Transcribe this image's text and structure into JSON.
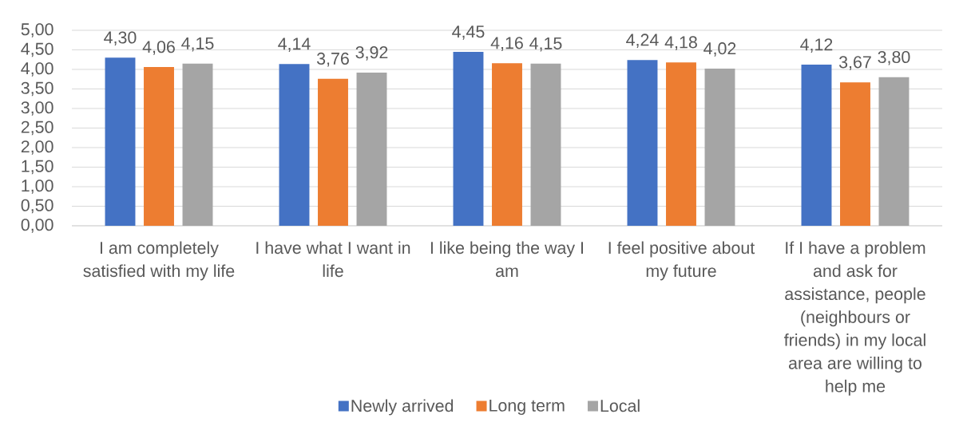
{
  "chart_data": {
    "type": "bar",
    "categories": [
      "I am completely satisfied with my life",
      "I have what I want in life",
      "I like being the way I am",
      "I feel positive about my future",
      "If I have a problem and ask for assistance, people (neighbours or friends) in my local area are willing to help me"
    ],
    "series": [
      {
        "name": "Newly arrived",
        "color": "#4472c4",
        "values": [
          4.3,
          4.14,
          4.45,
          4.24,
          4.12
        ],
        "value_labels": [
          "4,30",
          "4,14",
          "4,45",
          "4,24",
          "4,12"
        ]
      },
      {
        "name": "Long term",
        "color": "#ed7d31",
        "values": [
          4.06,
          3.76,
          4.16,
          4.18,
          3.67
        ],
        "value_labels": [
          "4,06",
          "3,76",
          "4,16",
          "4,18",
          "3,67"
        ]
      },
      {
        "name": "Local",
        "color": "#a5a5a5",
        "values": [
          4.15,
          3.92,
          4.15,
          4.02,
          3.8
        ],
        "value_labels": [
          "4,15",
          "3,92",
          "4,15",
          "4,02",
          "3,80"
        ]
      }
    ],
    "ylim": [
      0,
      5
    ],
    "yticks": [
      {
        "value": 0,
        "label": "0,00"
      },
      {
        "value": 0.5,
        "label": "0,50"
      },
      {
        "value": 1,
        "label": "1,00"
      },
      {
        "value": 1.5,
        "label": "1,50"
      },
      {
        "value": 2,
        "label": "2,00"
      },
      {
        "value": 2.5,
        "label": "2,50"
      },
      {
        "value": 3,
        "label": "3,00"
      },
      {
        "value": 3.5,
        "label": "3,50"
      },
      {
        "value": 4,
        "label": "4,00"
      },
      {
        "value": 4.5,
        "label": "4,50"
      },
      {
        "value": 5,
        "label": "5,00"
      }
    ],
    "grid": "y",
    "legend": "bottom"
  }
}
